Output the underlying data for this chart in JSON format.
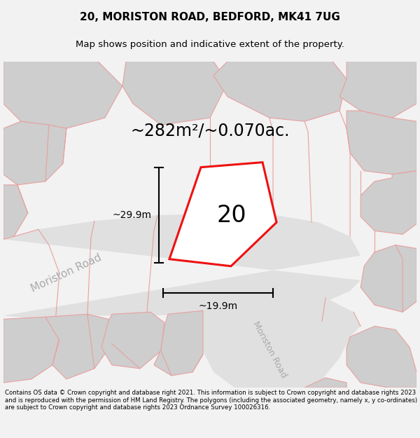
{
  "title_line1": "20, MORISTON ROAD, BEDFORD, MK41 7UG",
  "title_line2": "Map shows position and indicative extent of the property.",
  "area_text": "~282m²/~0.070ac.",
  "label_number": "20",
  "dim_width": "~19.9m",
  "dim_height": "~29.9m",
  "road_label1": "Moriston Road",
  "road_label2": "Moriston Road",
  "footer_text": "Contains OS data © Crown copyright and database right 2021. This information is subject to Crown copyright and database rights 2023 and is reproduced with the permission of HM Land Registry. The polygons (including the associated geometry, namely x, y co-ordinates) are subject to Crown copyright and database rights 2023 Ordnance Survey 100026316.",
  "bg_color": "#f2f2f2",
  "map_bg": "#f8f8f8",
  "plot_color": "#ee1111",
  "plot_fill": "#ffffff",
  "road_fill": "#e0e0e0",
  "building_fill": "#cecece",
  "pink_line": "#e8a0a0",
  "dim_color": "#000000",
  "text_color": "#000000",
  "road_text_color": "#aaaaaa",
  "title_fontsize": 11,
  "subtitle_fontsize": 9.5,
  "area_fontsize": 17,
  "number_fontsize": 24,
  "dim_fontsize": 10,
  "road_fontsize": 11,
  "footer_fontsize": 6.2
}
